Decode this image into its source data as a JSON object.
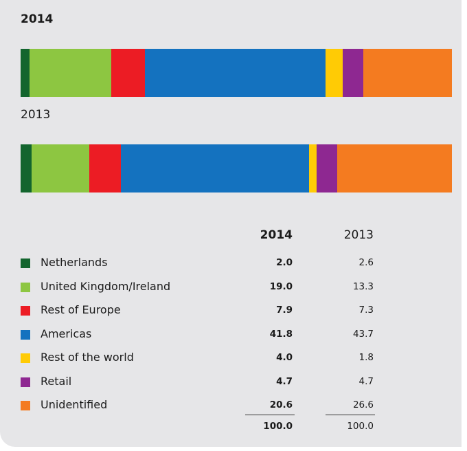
{
  "chart_data": {
    "type": "bar",
    "stacked": "horizontal-100%",
    "bars": [
      {
        "label": "2014",
        "bold": true
      },
      {
        "label": "2013",
        "bold": false
      }
    ],
    "series": [
      {
        "name": "Netherlands",
        "color": "#13652e",
        "values": [
          2.0,
          2.6
        ]
      },
      {
        "name": "United Kingdom/Ireland",
        "color": "#8dc641",
        "values": [
          19.0,
          13.3
        ]
      },
      {
        "name": "Rest of Europe",
        "color": "#ec1c24",
        "values": [
          7.9,
          7.3
        ]
      },
      {
        "name": "Americas",
        "color": "#1472bf",
        "values": [
          41.8,
          43.7
        ]
      },
      {
        "name": "Rest of the world",
        "color": "#ffcb05",
        "values": [
          4.0,
          1.8
        ]
      },
      {
        "name": "Retail",
        "color": "#8e2891",
        "values": [
          4.7,
          4.7
        ]
      },
      {
        "name": "Unidentified",
        "color": "#f47b20",
        "values": [
          20.6,
          26.6
        ]
      }
    ],
    "table": {
      "col_headers": [
        "2014",
        "2013"
      ],
      "rows": [
        {
          "label": "Netherlands",
          "v2014": "2.0",
          "v2013": "2.6"
        },
        {
          "label": "United Kingdom/Ireland",
          "v2014": "19.0",
          "v2013": "13.3"
        },
        {
          "label": "Rest of Europe",
          "v2014": "7.9",
          "v2013": "7.3"
        },
        {
          "label": "Americas",
          "v2014": "41.8",
          "v2013": "43.7"
        },
        {
          "label": "Rest of the world",
          "v2014": "4.0",
          "v2013": "1.8"
        },
        {
          "label": "Retail",
          "v2014": "4.7",
          "v2013": "4.7"
        },
        {
          "label": "Unidentified",
          "v2014": "20.6",
          "v2013": "26.6"
        }
      ],
      "totals": [
        "100.0",
        "100.0"
      ]
    }
  }
}
